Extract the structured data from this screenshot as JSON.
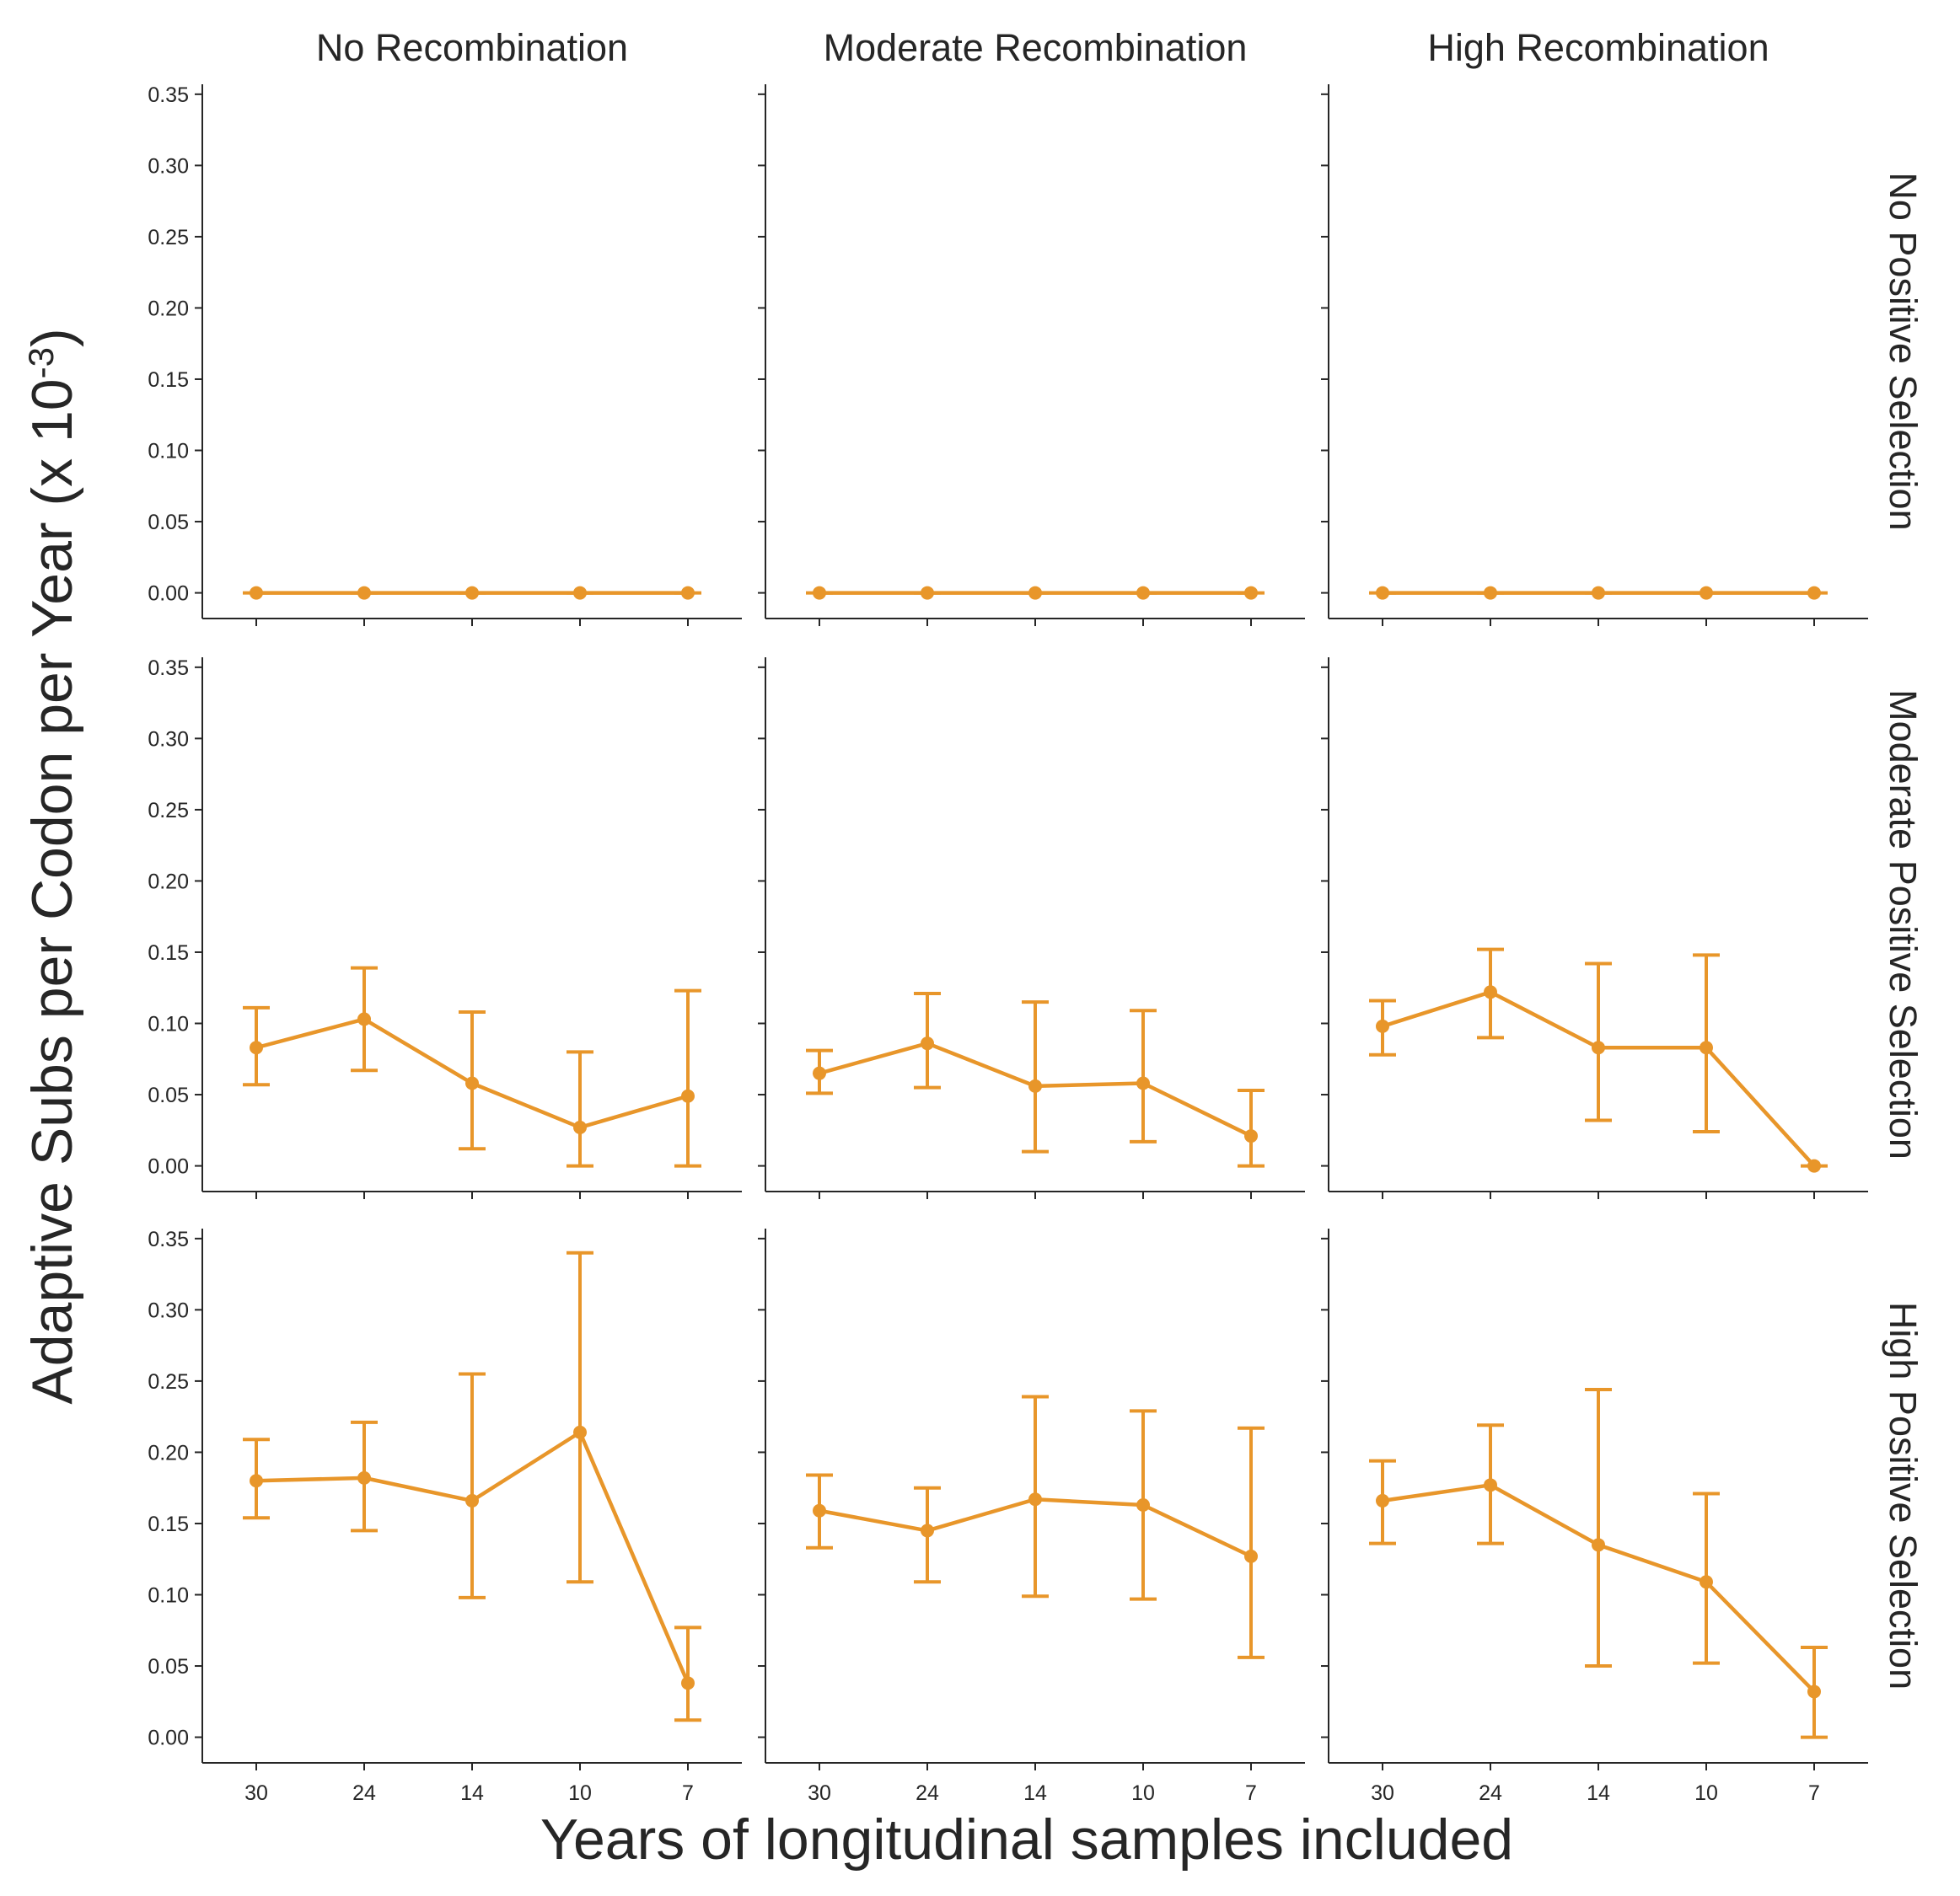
{
  "colors": {
    "series": "#E8962A",
    "axis": "#262626"
  },
  "figure": {
    "xlabel": "Years of longitudinal samples included",
    "ylabel_main": "Adaptive Subs per Codon per Year (x 10",
    "ylabel_sup": "-3",
    "ylabel_close": ")"
  },
  "chart_data": {
    "type": "line",
    "layout": "facet-grid",
    "x": [
      "30",
      "24",
      "14",
      "10",
      "7"
    ],
    "yticks": [
      "0.00",
      "0.05",
      "0.10",
      "0.15",
      "0.20",
      "0.25",
      "0.30",
      "0.35"
    ],
    "ylim": [
      -0.018,
      0.357
    ],
    "col_titles": [
      "No Recombination",
      "Moderate Recombination",
      "High Recombination"
    ],
    "row_titles": [
      "No Positive Selection",
      "Moderate Positive Selection",
      "High Positive Selection"
    ],
    "panels": [
      [
        {
          "values": [
            0,
            0,
            0,
            0,
            0
          ],
          "lower": [
            0,
            0,
            0,
            0,
            0
          ],
          "upper": [
            0,
            0,
            0,
            0,
            0
          ]
        },
        {
          "values": [
            0,
            0,
            0,
            0,
            0
          ],
          "lower": [
            0,
            0,
            0,
            0,
            0
          ],
          "upper": [
            0,
            0,
            0,
            0,
            0
          ]
        },
        {
          "values": [
            0,
            0,
            0,
            0,
            0
          ],
          "lower": [
            0,
            0,
            0,
            0,
            0
          ],
          "upper": [
            0,
            0,
            0,
            0,
            0
          ]
        }
      ],
      [
        {
          "values": [
            0.083,
            0.103,
            0.058,
            0.027,
            0.049
          ],
          "lower": [
            0.057,
            0.067,
            0.012,
            0.0,
            0.0
          ],
          "upper": [
            0.111,
            0.139,
            0.108,
            0.08,
            0.123
          ]
        },
        {
          "values": [
            0.065,
            0.086,
            0.056,
            0.058,
            0.021
          ],
          "lower": [
            0.051,
            0.055,
            0.01,
            0.017,
            0.0
          ],
          "upper": [
            0.081,
            0.121,
            0.115,
            0.109,
            0.053
          ]
        },
        {
          "values": [
            0.098,
            0.122,
            0.083,
            0.083,
            0.0
          ],
          "lower": [
            0.078,
            0.09,
            0.032,
            0.024,
            0.0
          ],
          "upper": [
            0.116,
            0.152,
            0.142,
            0.148,
            0.0
          ]
        }
      ],
      [
        {
          "values": [
            0.18,
            0.182,
            0.166,
            0.214,
            0.038
          ],
          "lower": [
            0.154,
            0.145,
            0.098,
            0.109,
            0.012
          ],
          "upper": [
            0.209,
            0.221,
            0.255,
            0.34,
            0.077
          ]
        },
        {
          "values": [
            0.159,
            0.145,
            0.167,
            0.163,
            0.127
          ],
          "lower": [
            0.133,
            0.109,
            0.099,
            0.097,
            0.056
          ],
          "upper": [
            0.184,
            0.175,
            0.239,
            0.229,
            0.217
          ]
        },
        {
          "values": [
            0.166,
            0.177,
            0.135,
            0.109,
            0.032
          ],
          "lower": [
            0.136,
            0.136,
            0.05,
            0.052,
            0.0
          ],
          "upper": [
            0.194,
            0.219,
            0.244,
            0.171,
            0.063
          ]
        }
      ]
    ]
  }
}
